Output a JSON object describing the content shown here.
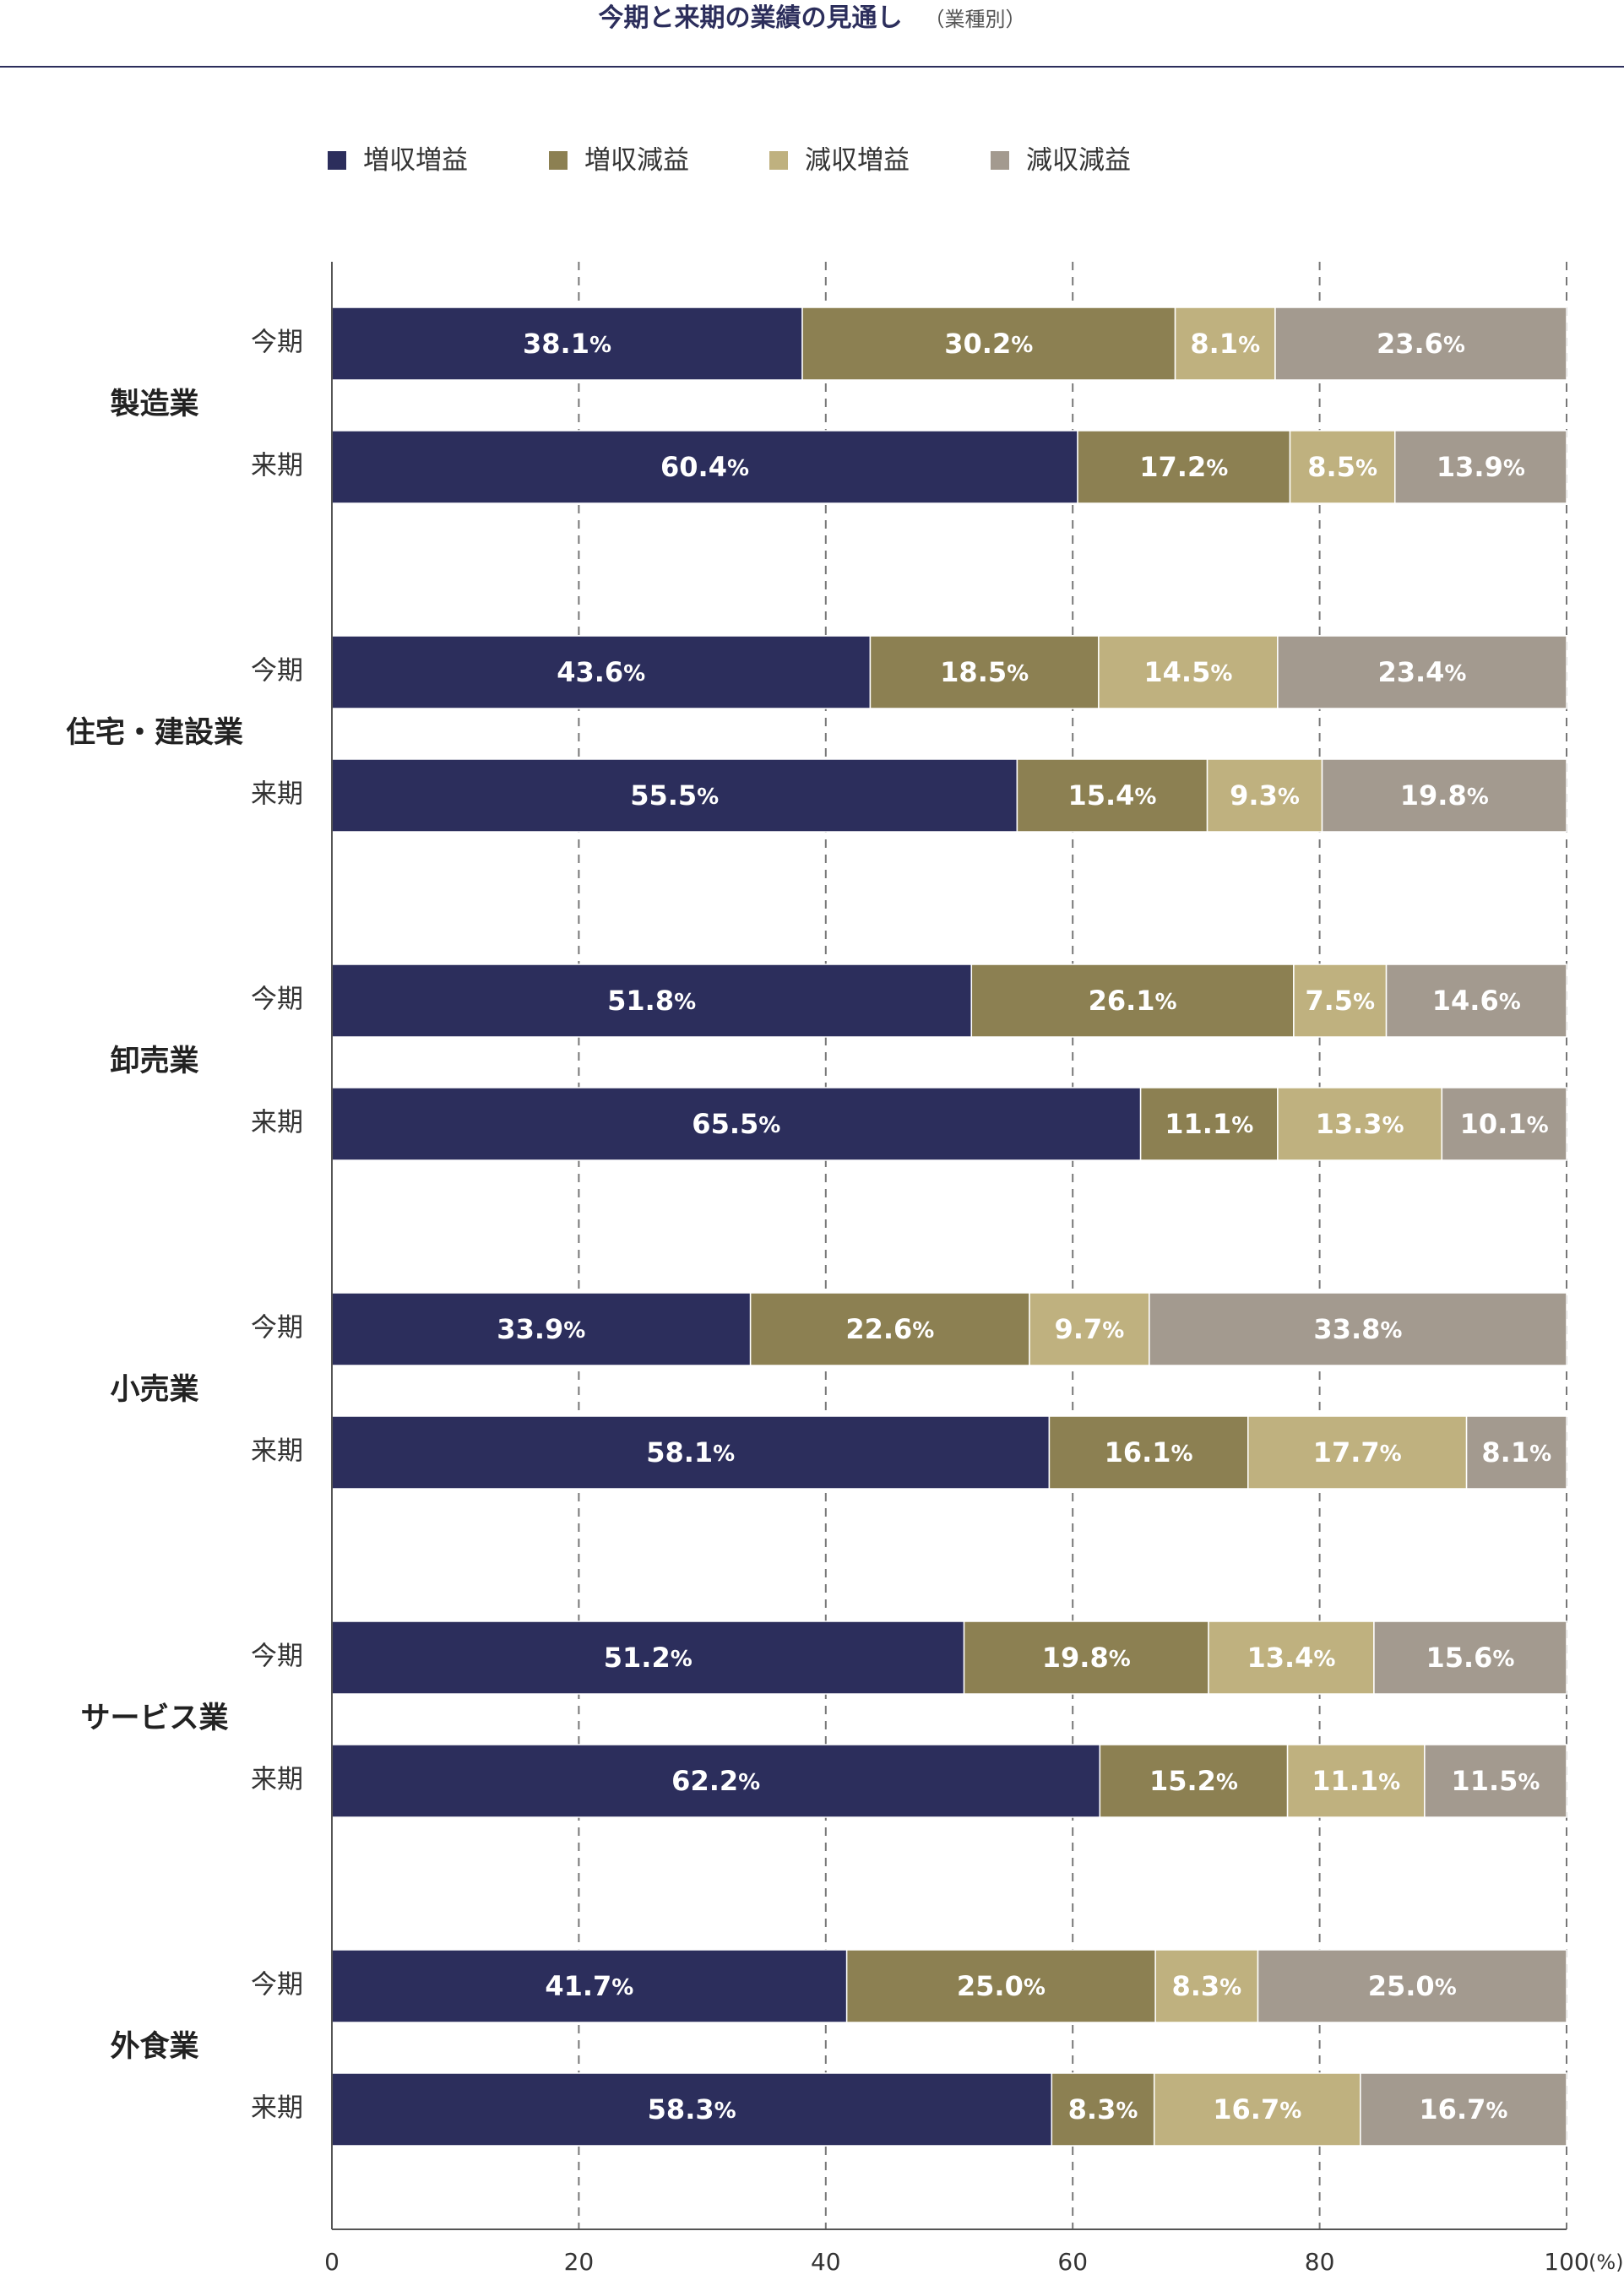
{
  "chart_data": {
    "type": "bar",
    "orientation": "horizontal",
    "stacked": true,
    "title": "今期と来期の業績の見通し",
    "subtitle": "（業種別）",
    "series": [
      {
        "name": "増収増益",
        "color": "#2c2e5c"
      },
      {
        "name": "増収減益",
        "color": "#8c8052"
      },
      {
        "name": "減収増益",
        "color": "#bfb17f"
      },
      {
        "name": "減収減益",
        "color": "#a39a8f"
      }
    ],
    "groups": [
      {
        "industry": "製造業",
        "rows": [
          {
            "period": "今期",
            "values": [
              38.1,
              30.2,
              8.1,
              23.6
            ]
          },
          {
            "period": "来期",
            "values": [
              60.4,
              17.2,
              8.5,
              13.9
            ]
          }
        ]
      },
      {
        "industry": "住宅・建設業",
        "rows": [
          {
            "period": "今期",
            "values": [
              43.6,
              18.5,
              14.5,
              23.4
            ]
          },
          {
            "period": "来期",
            "values": [
              55.5,
              15.4,
              9.3,
              19.8
            ]
          }
        ]
      },
      {
        "industry": "卸売業",
        "rows": [
          {
            "period": "今期",
            "values": [
              51.8,
              26.1,
              7.5,
              14.6
            ]
          },
          {
            "period": "来期",
            "values": [
              65.5,
              11.1,
              13.3,
              10.1
            ]
          }
        ]
      },
      {
        "industry": "小売業",
        "rows": [
          {
            "period": "今期",
            "values": [
              33.9,
              22.6,
              9.7,
              33.8
            ]
          },
          {
            "period": "来期",
            "values": [
              58.1,
              16.1,
              17.7,
              8.1
            ]
          }
        ]
      },
      {
        "industry": "サービス業",
        "rows": [
          {
            "period": "今期",
            "values": [
              51.2,
              19.8,
              13.4,
              15.6
            ]
          },
          {
            "period": "来期",
            "values": [
              62.2,
              15.2,
              11.1,
              11.5
            ]
          }
        ]
      },
      {
        "industry": "外食業",
        "rows": [
          {
            "period": "今期",
            "values": [
              41.7,
              25.0,
              8.3,
              25.0
            ]
          },
          {
            "period": "来期",
            "values": [
              58.3,
              8.3,
              16.7,
              16.7
            ]
          }
        ]
      }
    ],
    "xlim": [
      0,
      100
    ],
    "xticks": [
      0,
      20,
      40,
      60,
      80,
      100
    ],
    "xunit": "(%)",
    "grid": "dashed-vertical",
    "legend_position": "top"
  }
}
